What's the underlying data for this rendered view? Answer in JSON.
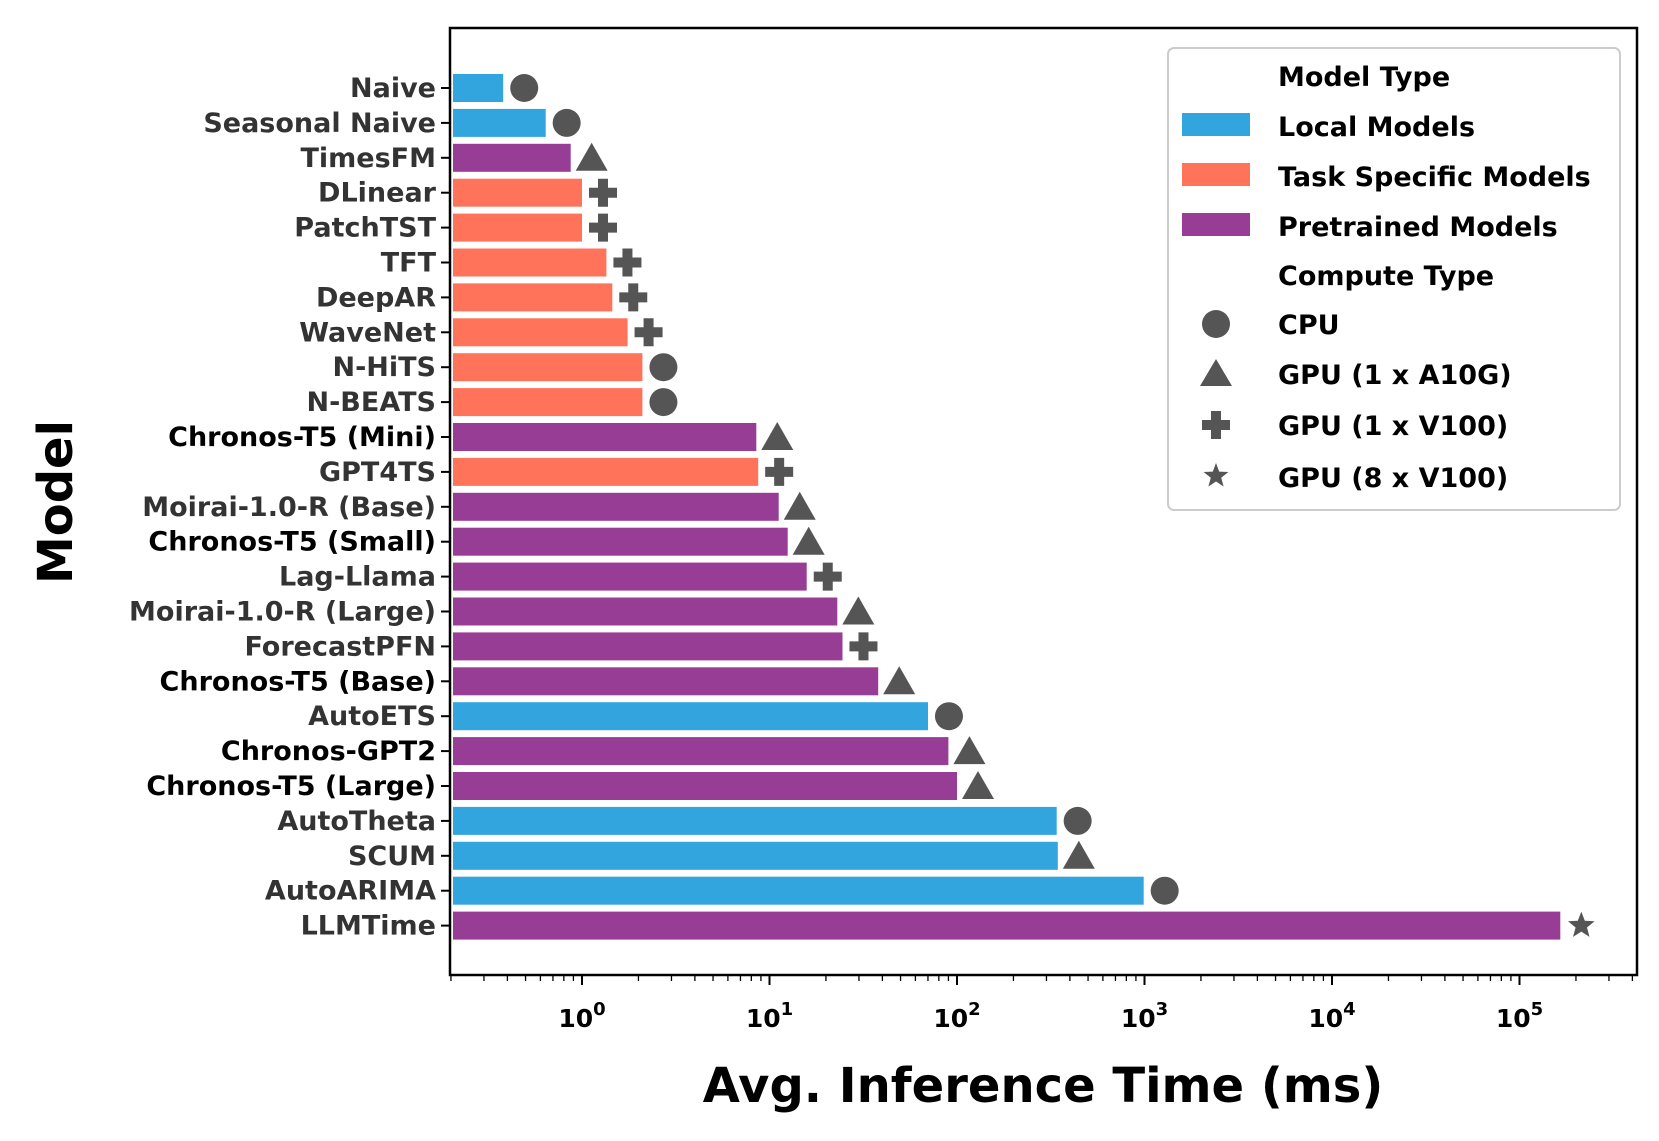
{
  "chart_data": {
    "type": "bar",
    "orientation": "horizontal",
    "xscale": "log",
    "xlabel": "Avg. Inference Time (ms)",
    "ylabel": "Model",
    "xlim": [
      0.17,
      430000
    ],
    "xticks": [
      {
        "base": "10",
        "exp": "0",
        "value": 1
      },
      {
        "base": "10",
        "exp": "1",
        "value": 10
      },
      {
        "base": "10",
        "exp": "2",
        "value": 100
      },
      {
        "base": "10",
        "exp": "3",
        "value": 1000
      },
      {
        "base": "10",
        "exp": "4",
        "value": 10000
      },
      {
        "base": "10",
        "exp": "5",
        "value": 100000
      }
    ],
    "colors": {
      "local": "#33a5de",
      "task": "#ff735b",
      "pretrained": "#983d96",
      "marker": "#555555"
    },
    "models": [
      {
        "name": "Naive",
        "value": 0.38,
        "type": "local",
        "compute": "cpu",
        "bold": false
      },
      {
        "name": "Seasonal Naive",
        "value": 0.64,
        "type": "local",
        "compute": "cpu",
        "bold": false
      },
      {
        "name": "TimesFM",
        "value": 0.87,
        "type": "pretrained",
        "compute": "a10g",
        "bold": false
      },
      {
        "name": "DLinear",
        "value": 1.0,
        "type": "task",
        "compute": "v100",
        "bold": false
      },
      {
        "name": "PatchTST",
        "value": 1.0,
        "type": "task",
        "compute": "v100",
        "bold": false
      },
      {
        "name": "TFT",
        "value": 1.35,
        "type": "task",
        "compute": "v100",
        "bold": false
      },
      {
        "name": "DeepAR",
        "value": 1.45,
        "type": "task",
        "compute": "v100",
        "bold": false
      },
      {
        "name": "WaveNet",
        "value": 1.75,
        "type": "task",
        "compute": "v100",
        "bold": false
      },
      {
        "name": "N-HiTS",
        "value": 2.1,
        "type": "task",
        "compute": "cpu",
        "bold": false
      },
      {
        "name": "N-BEATS",
        "value": 2.1,
        "type": "task",
        "compute": "cpu",
        "bold": false
      },
      {
        "name": "Chronos-T5 (Mini)",
        "value": 8.5,
        "type": "pretrained",
        "compute": "a10g",
        "bold": true
      },
      {
        "name": "GPT4TS",
        "value": 8.7,
        "type": "task",
        "compute": "v100",
        "bold": false
      },
      {
        "name": "Moirai-1.0-R (Base)",
        "value": 11.2,
        "type": "pretrained",
        "compute": "a10g",
        "bold": false
      },
      {
        "name": "Chronos-T5 (Small)",
        "value": 12.5,
        "type": "pretrained",
        "compute": "a10g",
        "bold": true
      },
      {
        "name": "Lag-Llama",
        "value": 15.8,
        "type": "pretrained",
        "compute": "v100",
        "bold": false
      },
      {
        "name": "Moirai-1.0-R (Large)",
        "value": 23,
        "type": "pretrained",
        "compute": "a10g",
        "bold": false
      },
      {
        "name": "ForecastPFN",
        "value": 24.5,
        "type": "pretrained",
        "compute": "v100",
        "bold": false
      },
      {
        "name": "Chronos-T5 (Base)",
        "value": 38,
        "type": "pretrained",
        "compute": "a10g",
        "bold": true
      },
      {
        "name": "AutoETS",
        "value": 70,
        "type": "local",
        "compute": "cpu",
        "bold": false
      },
      {
        "name": "Chronos-GPT2",
        "value": 90,
        "type": "pretrained",
        "compute": "a10g",
        "bold": true
      },
      {
        "name": "Chronos-T5 (Large)",
        "value": 100,
        "type": "pretrained",
        "compute": "a10g",
        "bold": true
      },
      {
        "name": "AutoTheta",
        "value": 340,
        "type": "local",
        "compute": "cpu",
        "bold": false
      },
      {
        "name": "SCUM",
        "value": 345,
        "type": "local",
        "compute": "a10g",
        "bold": false
      },
      {
        "name": "AutoARIMA",
        "value": 990,
        "type": "local",
        "compute": "cpu",
        "bold": false
      },
      {
        "name": "LLMTime",
        "value": 165000,
        "type": "pretrained",
        "compute": "v100x8",
        "bold": false
      }
    ],
    "legend": {
      "position": "top-right",
      "model_type_title": "Model Type",
      "model_types": [
        {
          "key": "local",
          "label": "Local Models"
        },
        {
          "key": "task",
          "label": "Task Specific Models"
        },
        {
          "key": "pretrained",
          "label": "Pretrained Models"
        }
      ],
      "compute_type_title": "Compute Type",
      "compute_types": [
        {
          "key": "cpu",
          "label": "CPU"
        },
        {
          "key": "a10g",
          "label": "GPU (1 x A10G)"
        },
        {
          "key": "v100",
          "label": "GPU (1 x V100)"
        },
        {
          "key": "v100x8",
          "label": "GPU (8 x V100)"
        }
      ]
    }
  }
}
